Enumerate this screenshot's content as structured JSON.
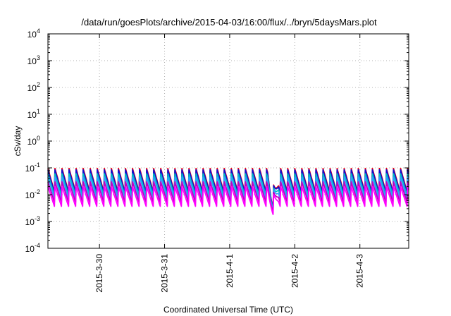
{
  "chart_data": {
    "type": "line",
    "title": "/data/run/goesPlots/archive/2015-04-03/16:00/flux/../bryn/5daysMars.plot",
    "xlabel": "Coordinated Universal Time (UTC)",
    "ylabel": "cSv/day",
    "yscale": "log",
    "ylim": [
      0.0001,
      10000
    ],
    "xlim": [
      "2015-03-29T05:00",
      "2015-04-03T18:00"
    ],
    "grid": true,
    "x_ticks": [
      {
        "date": "2015-03-30T00:00",
        "label": "2015-3-30"
      },
      {
        "date": "2015-03-31T00:00",
        "label": "2015-3-31"
      },
      {
        "date": "2015-04-01T00:00",
        "label": "2015-4-1"
      },
      {
        "date": "2015-04-02T00:00",
        "label": "2015-4-2"
      },
      {
        "date": "2015-04-03T00:00",
        "label": "2015-4-3"
      }
    ],
    "y_ticks": [
      {
        "value": 0.0001,
        "base": "10",
        "exp": "-4"
      },
      {
        "value": 0.001,
        "base": "10",
        "exp": "-3"
      },
      {
        "value": 0.01,
        "base": "10",
        "exp": "-2"
      },
      {
        "value": 0.1,
        "base": "10",
        "exp": "-1"
      },
      {
        "value": 1,
        "base": "10",
        "exp": "0"
      },
      {
        "value": 10,
        "base": "10",
        "exp": "1"
      },
      {
        "value": 100,
        "base": "10",
        "exp": "2"
      },
      {
        "value": 1000,
        "base": "10",
        "exp": "3"
      },
      {
        "value": 10000,
        "base": "10",
        "exp": "4"
      }
    ],
    "cycle_hours": 2.6,
    "series": [
      {
        "color": "#ff0000",
        "peak": 0.095,
        "trough": 0.011
      },
      {
        "color": "#1010d0",
        "peak": 0.085,
        "trough": 0.01
      },
      {
        "color": "#00c0c0",
        "peak": 0.06,
        "trough": 0.008
      },
      {
        "color": "#30a0ff",
        "peak": 0.045,
        "trough": 0.006
      },
      {
        "color": "#c000c0",
        "peak": 0.03,
        "trough": 0.0045
      },
      {
        "color": "#ff00ff",
        "peak": 0.02,
        "trough": 0.0032
      }
    ],
    "dip_event": {
      "start": "2015-04-01T14:00",
      "end": "2015-04-01T18:00",
      "min_value": 0.001
    }
  }
}
